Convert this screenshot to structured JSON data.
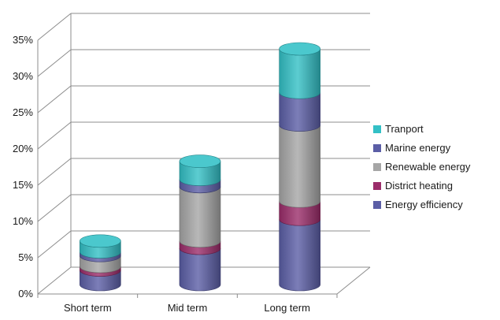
{
  "chart_data": {
    "type": "bar",
    "stacked": true,
    "style": "3d-cylinder",
    "categories": [
      "Short term",
      "Mid term",
      "Long term"
    ],
    "series": [
      {
        "name": "Energy efficiency",
        "values": [
          2.0,
          5.0,
          9.0
        ],
        "color": "#5b5ea6"
      },
      {
        "name": "District heating",
        "values": [
          0.5,
          1.0,
          2.5
        ],
        "color": "#9b2d6a"
      },
      {
        "name": "Renewable energy",
        "values": [
          1.5,
          7.5,
          10.5
        ],
        "color": "#a6a6a6"
      },
      {
        "name": "Marine energy",
        "values": [
          0.5,
          1.0,
          4.5
        ],
        "color": "#5b5ea6"
      },
      {
        "name": "Tranport",
        "values": [
          1.5,
          2.5,
          6.0
        ],
        "color": "#33c0c6"
      }
    ],
    "y_ticks": [
      "0%",
      "5%",
      "10%",
      "15%",
      "20%",
      "25%",
      "30%",
      "35%"
    ],
    "ylim": [
      0,
      35
    ],
    "y_unit": "%",
    "grid": true,
    "legend_position": "right",
    "legend_order": [
      "Tranport",
      "Marine energy",
      "Renewable energy",
      "District heating",
      "Energy efficiency"
    ]
  }
}
